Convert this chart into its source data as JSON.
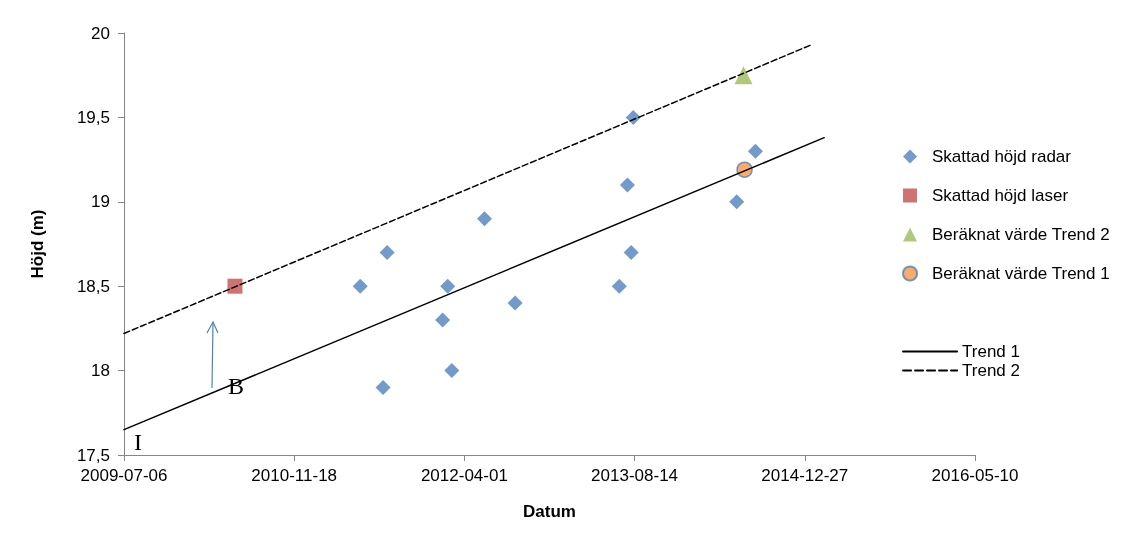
{
  "chart_data": {
    "type": "scatter",
    "xlabel": "Datum",
    "ylabel": "Höjd (m)",
    "xlim": [
      "2009-07-06",
      "2016-05-10"
    ],
    "xticks": [
      "2009-07-06",
      "2010-11-18",
      "2012-04-01",
      "2013-08-14",
      "2014-12-27",
      "2016-05-10"
    ],
    "ylim": [
      17.5,
      20
    ],
    "yticks": [
      {
        "value": 17.5,
        "label": "17,5"
      },
      {
        "value": 18,
        "label": "18"
      },
      {
        "value": 18.5,
        "label": "18,5"
      },
      {
        "value": 19,
        "label": "19"
      },
      {
        "value": 19.5,
        "label": "19,5"
      },
      {
        "value": 20,
        "label": "20"
      }
    ],
    "grid": false,
    "legend": "right",
    "series": [
      {
        "name": "Skattad höjd radar",
        "marker": "diamond",
        "color": "#4f81bd",
        "x": [
          "2011-05-31",
          "2011-08-18",
          "2011-08-06",
          "2012-01-28",
          "2012-02-12",
          "2012-02-24",
          "2012-05-30",
          "2012-08-28",
          "2013-06-30",
          "2013-07-24",
          "2013-08-04",
          "2013-08-10",
          "2014-06-10",
          "2014-08-04"
        ],
        "values": [
          18.5,
          18.7,
          17.9,
          18.3,
          18.5,
          18.0,
          18.9,
          18.4,
          18.5,
          19.1,
          18.7,
          19.5,
          19.0,
          19.3
        ]
      },
      {
        "name": "Skattad höjd laser",
        "marker": "square",
        "color": "#c0504d",
        "x": [
          "2010-05-28"
        ],
        "values": [
          18.5
        ]
      },
      {
        "name": "Beräknat värde Trend 2",
        "marker": "triangle",
        "color": "#9bbb59",
        "x": [
          "2014-06-30"
        ],
        "values": [
          19.75
        ]
      },
      {
        "name": "Beräknat värde Trend 1",
        "marker": "circle",
        "color": "#f79646",
        "x": [
          "2014-07-03"
        ],
        "values": [
          19.19
        ]
      },
      {
        "name": "Trend 1",
        "type": "line",
        "marker": "none",
        "line_style": "solid",
        "color": "#000000",
        "x": [
          "2009-07-06",
          "2015-02-22"
        ],
        "values": [
          17.65,
          19.38
        ]
      },
      {
        "name": "Trend 2",
        "type": "line",
        "marker": "none",
        "line_style": "dashed",
        "color": "#000000",
        "x": [
          "2009-07-06",
          "2015-01-15"
        ],
        "values": [
          18.22,
          19.93
        ]
      }
    ],
    "annotations": [
      "I",
      "B"
    ]
  }
}
